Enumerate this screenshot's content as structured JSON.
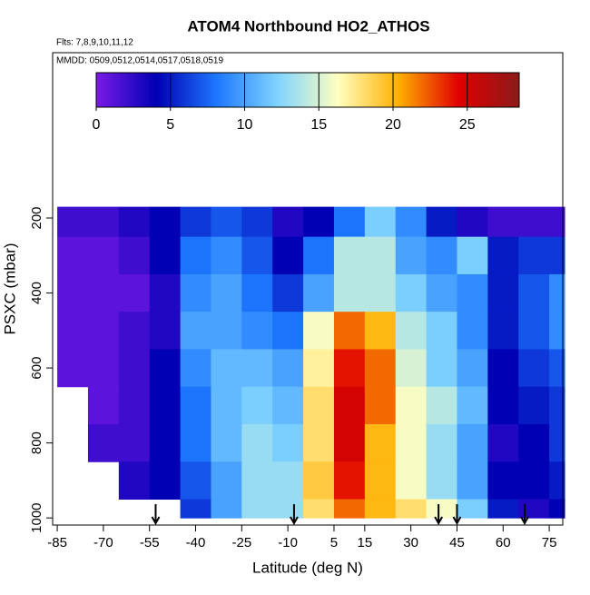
{
  "chart_data": {
    "type": "heatmap",
    "title": "ATOM4 Northbound HO2_ATHOS",
    "subtitle": "Flts: 7,8,9,10,11,12",
    "annotation": "MMDD: 0509,0512,0514,0517,0518,0519",
    "x_label": "Latitude (deg N)",
    "y_label": "PSXC (mbar)",
    "xlim": [
      -86.5,
      79.4
    ],
    "xticks": [
      -85,
      -70,
      -55,
      -40,
      -25,
      -10,
      5,
      15,
      30,
      45,
      60,
      75
    ],
    "ylim": [
      1019,
      -241
    ],
    "yticks": [
      200,
      400,
      600,
      800,
      1000
    ],
    "xbins": [
      -85,
      -75,
      -65,
      -55,
      -45,
      -35,
      -25,
      -15,
      -5,
      5,
      15,
      25,
      35,
      45,
      55,
      65,
      75,
      80
    ],
    "ybins": [
      170,
      250,
      350,
      450,
      550,
      650,
      750,
      850,
      950,
      1000
    ],
    "values": [
      [
        2,
        2,
        3,
        4,
        6,
        7,
        6,
        3,
        4,
        8,
        12,
        9,
        5,
        3,
        2,
        2,
        2
      ],
      [
        1,
        1,
        2,
        4,
        8,
        9,
        7,
        4,
        8,
        14,
        14,
        10,
        9,
        12,
        5,
        6,
        6
      ],
      [
        1,
        1,
        1,
        3,
        9,
        10,
        8,
        6,
        10,
        14,
        14,
        12,
        10,
        9,
        5,
        7,
        9
      ],
      [
        1,
        1,
        2,
        3,
        10,
        10,
        9,
        8,
        16,
        22,
        20,
        14,
        12,
        9,
        5,
        7,
        9
      ],
      [
        1,
        1,
        2,
        4,
        9,
        11,
        11,
        10,
        17,
        24,
        22,
        15,
        12,
        10,
        4,
        6,
        7
      ],
      [
        null,
        1,
        2,
        4,
        8,
        11,
        12,
        11,
        18,
        25,
        22,
        16,
        14,
        11,
        4,
        5,
        6
      ],
      [
        null,
        2,
        2,
        4,
        8,
        11,
        13,
        12,
        18,
        25,
        20,
        16,
        13,
        10,
        3,
        4,
        6
      ],
      [
        null,
        null,
        3,
        4,
        7,
        10,
        13,
        13,
        19,
        24,
        20,
        16,
        13,
        10,
        4,
        4,
        5
      ],
      [
        null,
        null,
        null,
        null,
        6,
        10,
        13,
        13,
        18,
        22,
        20,
        18,
        16,
        12,
        5,
        3,
        4
      ]
    ],
    "clim": [
      0,
      28.5
    ],
    "cticks": [
      0,
      5,
      10,
      15,
      20,
      25
    ],
    "colormap": [
      "#7a1ae6",
      "#0000b4",
      "#1e78ff",
      "#7fd4ff",
      "#ffffc0",
      "#ffb000",
      "#e00000",
      "#8b1a1a"
    ],
    "arrows": [
      -53,
      -8,
      39,
      45,
      67
    ]
  }
}
